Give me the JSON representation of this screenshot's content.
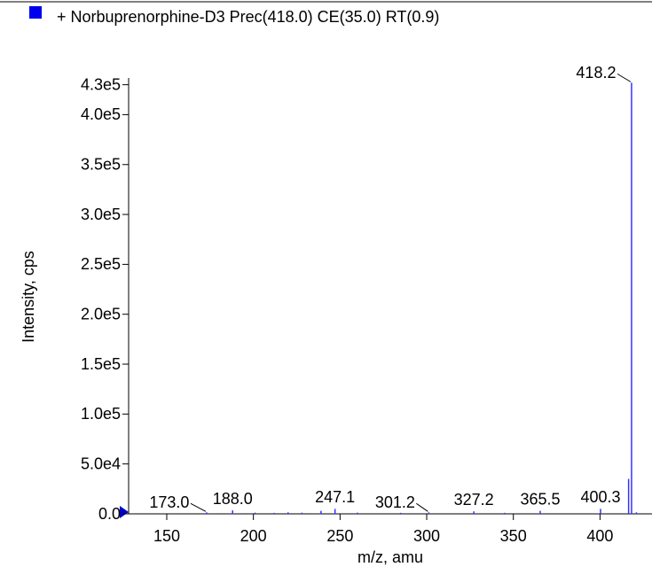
{
  "chart_data": {
    "type": "stem",
    "title": "+ Norbuprenorphine-D3 Prec(418.0) CE(35.0) RT(0.9)",
    "x_label": "m/z, amu",
    "y_label": "Intensity, cps",
    "color": "#3333ff",
    "legend_color": "#0000ee",
    "x": [
      173.0,
      188.0,
      201.0,
      212.0,
      220.0,
      228.0,
      239.0,
      247.1,
      260.0,
      285.0,
      301.2,
      327.2,
      345.0,
      365.5,
      400.3,
      416.5,
      418.2,
      421.0
    ],
    "values": [
      1500,
      3500,
      1200,
      1000,
      1500,
      1200,
      3000,
      5000,
      1200,
      1000,
      1500,
      2500,
      1000,
      3000,
      5000,
      35000,
      432000,
      1500
    ],
    "labels": [
      "173.0",
      "188.0",
      null,
      null,
      null,
      null,
      null,
      "247.1",
      null,
      null,
      "301.2",
      "327.2",
      null,
      "365.5",
      "400.3",
      null,
      "418.2",
      null
    ],
    "xlim": [
      128,
      430
    ],
    "xticks": [
      150,
      200,
      250,
      300,
      350,
      400
    ],
    "ylim": [
      0,
      435000
    ],
    "yticks": [
      {
        "value": 0,
        "label": "0.0"
      },
      {
        "value": 50000,
        "label": "5.0e4"
      },
      {
        "value": 100000,
        "label": "1.0e5"
      },
      {
        "value": 150000,
        "label": "1.5e5"
      },
      {
        "value": 200000,
        "label": "2.0e5"
      },
      {
        "value": 250000,
        "label": "2.5e5"
      },
      {
        "value": 300000,
        "label": "3.0e5"
      },
      {
        "value": 350000,
        "label": "3.5e5"
      },
      {
        "value": 400000,
        "label": "4.0e5"
      },
      {
        "value": 430000,
        "label": "4.3e5"
      }
    ]
  }
}
